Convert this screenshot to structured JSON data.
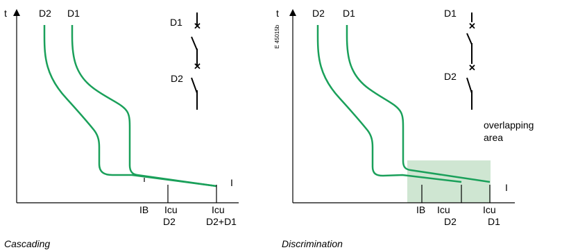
{
  "left_panel": {
    "axis_t": "t",
    "axis_i": "I",
    "curve_d2_label": "D2",
    "curve_d1_label": "D1",
    "switch_top_label": "D1",
    "switch_bottom_label": "D2",
    "tick_ib": "IB",
    "tick_icu_d2_line1": "Icu",
    "tick_icu_d2_line2": "D2",
    "tick_icu_sum_line1": "Icu",
    "tick_icu_sum_line2": "D2+D1",
    "caption": "Cascading"
  },
  "right_panel": {
    "ref_code": "E 45015b",
    "axis_t": "t",
    "axis_i": "I",
    "curve_d2_label": "D2",
    "curve_d1_label": "D1",
    "switch_top_label": "D1",
    "switch_bottom_label": "D2",
    "overlap_line1": "overlapping",
    "overlap_line2": "area",
    "tick_ib": "IB",
    "tick_icu_d2_line1": "Icu",
    "tick_icu_d2_line2": "D2",
    "tick_icu_d1_line1": "Icu",
    "tick_icu_d1_line2": "D1",
    "caption": "Discrimination"
  },
  "colors": {
    "curve": "#1aa05a",
    "overlap_fill": "#cfe6d2",
    "axis": "#000000"
  }
}
